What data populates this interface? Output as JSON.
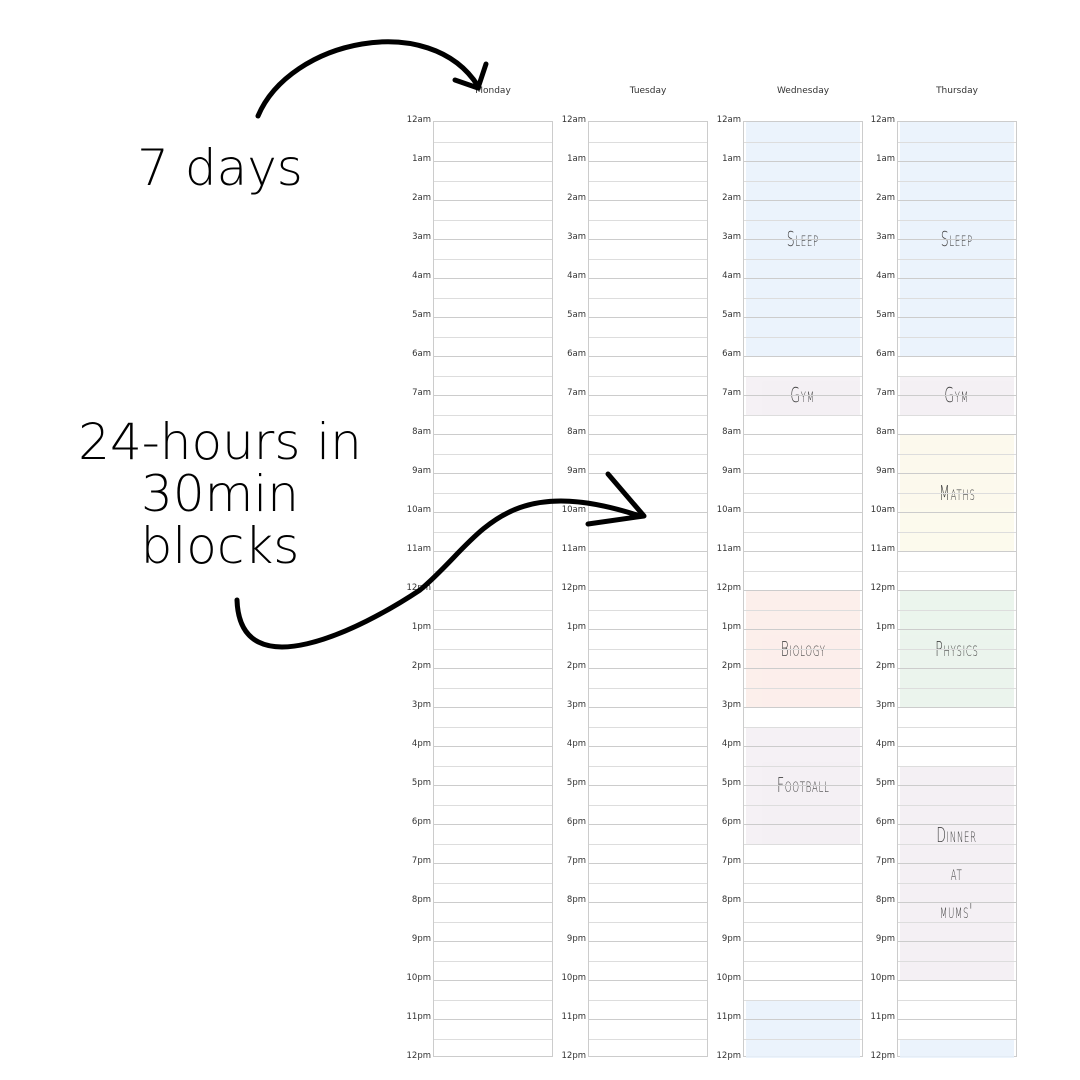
{
  "annotations": {
    "days": "7 days",
    "hours": "24-hours in\n30min\nblocks"
  },
  "time_labels": [
    "12am",
    "1am",
    "2am",
    "3am",
    "4am",
    "5am",
    "6am",
    "7am",
    "8am",
    "9am",
    "10am",
    "11am",
    "12pm",
    "1pm",
    "2pm",
    "3pm",
    "4pm",
    "5pm",
    "6pm",
    "7pm",
    "8pm",
    "9pm",
    "10pm",
    "11pm",
    "12pm"
  ],
  "days": [
    {
      "name": "Monday",
      "events": []
    },
    {
      "name": "Tuesday",
      "events": []
    },
    {
      "name": "Wednesday",
      "events": [
        {
          "label": "Sleep",
          "start": 0,
          "end": 6,
          "color": "#e8f1fc"
        },
        {
          "label": "Gym",
          "start": 6.5,
          "end": 7.5,
          "color": "#f3eef3"
        },
        {
          "label": "Biology",
          "start": 12,
          "end": 15,
          "color": "#fcece8"
        },
        {
          "label": "Football",
          "start": 15.5,
          "end": 18.5,
          "color": "#f3eef3"
        },
        {
          "label": "",
          "start": 22.5,
          "end": 24,
          "color": "#e8f1fc"
        }
      ]
    },
    {
      "name": "Thursday",
      "events": [
        {
          "label": "Sleep",
          "start": 0,
          "end": 6,
          "color": "#e8f1fc"
        },
        {
          "label": "Gym",
          "start": 6.5,
          "end": 7.5,
          "color": "#f3eef3"
        },
        {
          "label": "Maths",
          "start": 8,
          "end": 11,
          "color": "#fcf9ea"
        },
        {
          "label": "Physics",
          "start": 12,
          "end": 15,
          "color": "#e8f3ea"
        },
        {
          "label": "Dinner\nat\nmums'",
          "start": 16.5,
          "end": 22,
          "color": "#f3eef3"
        },
        {
          "label": "",
          "start": 23.5,
          "end": 24,
          "color": "#e8f1fc"
        }
      ]
    }
  ]
}
